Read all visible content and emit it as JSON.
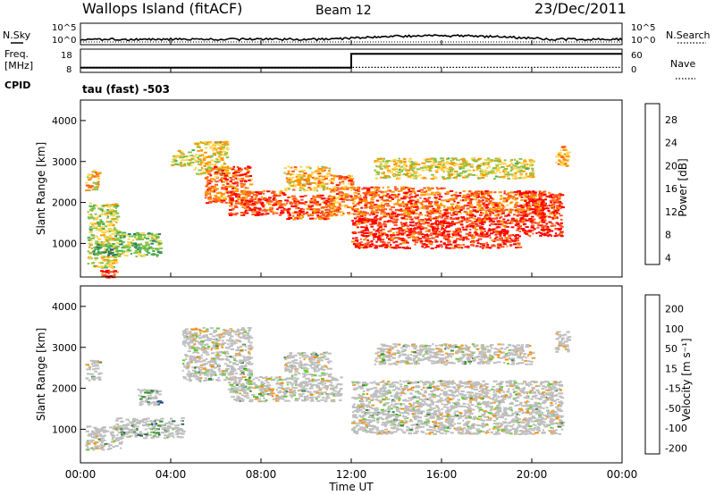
{
  "header": {
    "site": "Wallops Island (fitACF)",
    "beam": "Beam 12",
    "date": "23/Dec/2011"
  },
  "noise_panel": {
    "left_label": "N.Sky",
    "right_label": "N.Search",
    "left_ticks": [
      "10^5",
      "10^0"
    ],
    "right_ticks": [
      "10^5",
      "10^0"
    ]
  },
  "freq_panel": {
    "left_label_1": "Freq.",
    "left_label_2": "[MHz]",
    "left_ticks": [
      "18",
      "8"
    ],
    "right_ticks": [
      "60",
      "0"
    ],
    "right_label": "Nave",
    "cpid_label": "CPID",
    "cpid_value": "tau (fast) -503"
  },
  "power_panel": {
    "ylabel": "Slant Range [km]",
    "yticks": [
      "4000",
      "3000",
      "2000",
      "1000"
    ],
    "colorbar_label": "Power [dB]",
    "colorbar_ticks": [
      "28",
      "24",
      "20",
      "16",
      "12",
      "8",
      "4"
    ]
  },
  "velocity_panel": {
    "ylabel": "Slant Range [km]",
    "yticks": [
      "4000",
      "3000",
      "2000",
      "1000"
    ],
    "colorbar_label": "Velocity [m s⁻¹]",
    "colorbar_ticks": [
      "200",
      "100",
      "50",
      "15",
      "-15",
      "-50",
      "-100",
      "-200"
    ]
  },
  "x_axis": {
    "label": "Time UT",
    "ticks": [
      "00:00",
      "04:00",
      "08:00",
      "12:00",
      "16:00",
      "20:00",
      "00:00"
    ]
  },
  "colors": {
    "power_scale": [
      "#0000ff",
      "#1a3fa0",
      "#2e7d5a",
      "#4caf50",
      "#8bc34a",
      "#ffd54f",
      "#ff9800",
      "#ff5722",
      "#ff0000"
    ],
    "velocity_scale": [
      "#2233aa",
      "#2e6b4a",
      "#3c8c3c",
      "#66cc33",
      "#bfbfbf",
      "#f0a030",
      "#ff8c00",
      "#ff6600",
      "#ff0000"
    ],
    "ground_scatter": "#bfbfbf"
  },
  "chart_data": {
    "type": "heatmap",
    "x_unit": "hours UT",
    "x_range": [
      0,
      24
    ],
    "y_range": [
      180,
      4500
    ],
    "power_bands": [
      {
        "start": 0.3,
        "end": 1.6,
        "range_start": 400,
        "range_end": 2000,
        "level": 0.55
      },
      {
        "start": 0.2,
        "end": 0.8,
        "range_start": 2300,
        "range_end": 2800,
        "level": 0.7
      },
      {
        "start": 0.5,
        "end": 1.5,
        "range_start": 700,
        "range_end": 1000,
        "level": 0.35
      },
      {
        "start": 0.8,
        "end": 1.6,
        "range_start": 180,
        "range_end": 400,
        "level": 0.95
      },
      {
        "start": 1.5,
        "end": 3.5,
        "range_start": 700,
        "range_end": 1300,
        "level": 0.45
      },
      {
        "start": 4.0,
        "end": 5.0,
        "range_start": 2900,
        "range_end": 3300,
        "level": 0.6
      },
      {
        "start": 5.0,
        "end": 6.5,
        "range_start": 2700,
        "range_end": 3500,
        "level": 0.65
      },
      {
        "start": 5.5,
        "end": 7.5,
        "range_start": 2000,
        "range_end": 2900,
        "level": 0.85
      },
      {
        "start": 6.5,
        "end": 9.0,
        "range_start": 1700,
        "range_end": 2300,
        "level": 0.9
      },
      {
        "start": 9.0,
        "end": 11.2,
        "range_start": 1600,
        "range_end": 2200,
        "level": 0.9
      },
      {
        "start": 9.0,
        "end": 11.0,
        "range_start": 2300,
        "range_end": 2900,
        "level": 0.7
      },
      {
        "start": 11.0,
        "end": 12.0,
        "range_start": 1700,
        "range_end": 2700,
        "level": 0.8
      },
      {
        "start": 12.0,
        "end": 16.0,
        "range_start": 900,
        "range_end": 1700,
        "level": 0.95
      },
      {
        "start": 12.0,
        "end": 16.0,
        "range_start": 1700,
        "range_end": 2400,
        "level": 0.85
      },
      {
        "start": 16.0,
        "end": 19.5,
        "range_start": 900,
        "range_end": 1700,
        "level": 0.95
      },
      {
        "start": 16.0,
        "end": 20.5,
        "range_start": 1700,
        "range_end": 2300,
        "level": 0.85
      },
      {
        "start": 19.5,
        "end": 21.3,
        "range_start": 1200,
        "range_end": 2300,
        "level": 0.95
      },
      {
        "start": 13.0,
        "end": 20.0,
        "range_start": 2600,
        "range_end": 3100,
        "level": 0.6
      },
      {
        "start": 21.0,
        "end": 21.6,
        "range_start": 2900,
        "range_end": 3400,
        "level": 0.75
      }
    ],
    "velocity_bands": [
      {
        "start": 0.2,
        "end": 1.8,
        "range_start": 500,
        "range_end": 1100,
        "level": 0.5
      },
      {
        "start": 0.2,
        "end": 0.8,
        "range_start": 2200,
        "range_end": 2700,
        "level": 0.5
      },
      {
        "start": 1.5,
        "end": 4.5,
        "range_start": 800,
        "range_end": 1300,
        "level": 0.25
      },
      {
        "start": 2.5,
        "end": 3.5,
        "range_start": 1600,
        "range_end": 2000,
        "level": 0.2
      },
      {
        "start": 4.5,
        "end": 7.5,
        "range_start": 2200,
        "range_end": 3500,
        "level": 0.5
      },
      {
        "start": 6.5,
        "end": 11.5,
        "range_start": 1700,
        "range_end": 2300,
        "level": 0.5
      },
      {
        "start": 9.0,
        "end": 11.0,
        "range_start": 2300,
        "range_end": 2900,
        "level": 0.5
      },
      {
        "start": 12.0,
        "end": 16.0,
        "range_start": 900,
        "range_end": 2200,
        "level": 0.5
      },
      {
        "start": 16.0,
        "end": 21.3,
        "range_start": 900,
        "range_end": 2200,
        "level": 0.5
      },
      {
        "start": 13.0,
        "end": 20.0,
        "range_start": 2600,
        "range_end": 3100,
        "level": 0.5
      },
      {
        "start": 21.0,
        "end": 21.6,
        "range_start": 2900,
        "range_end": 3400,
        "level": 0.55
      }
    ],
    "frequency_mhz": [
      {
        "t": 0,
        "v": 10.0
      },
      {
        "t": 12.0,
        "v": 10.0
      },
      {
        "t": 12.0,
        "v": 16.0
      },
      {
        "t": 24,
        "v": 16.0
      }
    ],
    "nave": [
      {
        "t": 0,
        "v": 13
      },
      {
        "t": 24,
        "v": 13
      }
    ]
  }
}
